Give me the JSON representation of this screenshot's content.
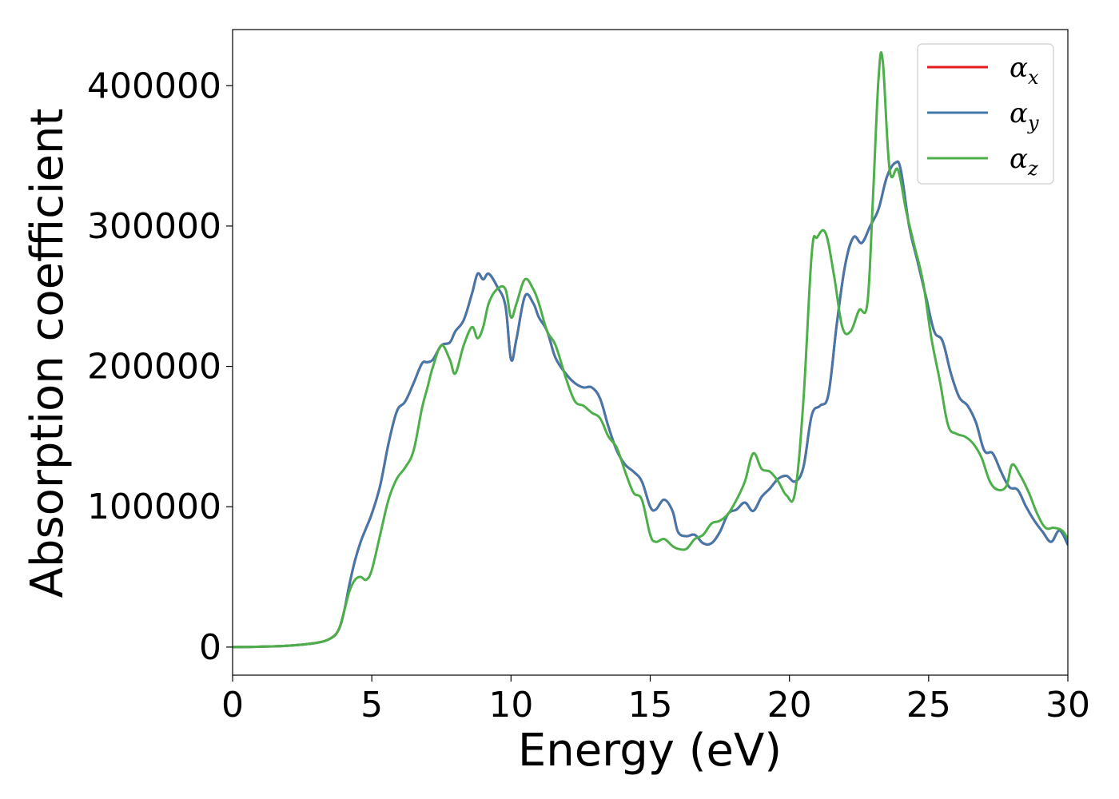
{
  "chart_data": {
    "type": "line",
    "title": "",
    "xlabel": "Energy (eV)",
    "ylabel": "Absorption coefficient",
    "xlim": [
      0,
      30
    ],
    "ylim": [
      -20000,
      440000
    ],
    "xticks": [
      0,
      5,
      10,
      15,
      20,
      25,
      30
    ],
    "xtick_labels": [
      "0",
      "5",
      "10",
      "15",
      "20",
      "25",
      "30"
    ],
    "yticks": [
      0,
      100000,
      200000,
      300000,
      400000
    ],
    "ytick_labels": [
      "0",
      "100000",
      "200000",
      "300000",
      "400000"
    ],
    "grid": false,
    "legend_position": "top-right",
    "series": [
      {
        "name": "αx",
        "legend_base": "α",
        "legend_sub": "x",
        "color": "#e41a1c",
        "x": [
          0,
          1,
          2,
          3,
          3.5,
          3.8,
          4.0,
          4.2,
          4.4,
          4.6,
          4.8,
          5.0,
          5.3,
          5.6,
          5.9,
          6.2,
          6.5,
          6.8,
          7.0,
          7.2,
          7.5,
          7.8,
          8.0,
          8.3,
          8.6,
          8.8,
          9.0,
          9.2,
          9.5,
          9.8,
          10.0,
          10.2,
          10.5,
          10.8,
          11.0,
          11.3,
          11.6,
          12.0,
          12.3,
          12.6,
          12.9,
          13.2,
          13.5,
          13.8,
          14.1,
          14.4,
          14.7,
          15.0,
          15.2,
          15.5,
          15.8,
          16.0,
          16.3,
          16.6,
          16.9,
          17.2,
          17.5,
          17.8,
          18.1,
          18.4,
          18.7,
          19.0,
          19.3,
          19.6,
          19.9,
          20.2,
          20.5,
          20.8,
          21.1,
          21.4,
          21.7,
          22.0,
          22.3,
          22.6,
          22.9,
          23.2,
          23.5,
          23.8,
          24.0,
          24.3,
          24.6,
          24.9,
          25.2,
          25.5,
          25.8,
          26.1,
          26.4,
          26.7,
          27.0,
          27.3,
          27.6,
          27.9,
          28.2,
          28.5,
          28.8,
          29.1,
          29.4,
          29.7,
          30.0
        ],
        "y": [
          0,
          300,
          1000,
          3000,
          6000,
          12000,
          25000,
          45000,
          62000,
          75000,
          85000,
          95000,
          115000,
          145000,
          168000,
          175000,
          188000,
          202000,
          203000,
          205000,
          215000,
          217000,
          225000,
          233000,
          252000,
          266000,
          262000,
          266000,
          257000,
          243000,
          205000,
          220000,
          250000,
          245000,
          235000,
          225000,
          206000,
          194000,
          188000,
          185000,
          185000,
          177000,
          157000,
          140000,
          130000,
          125000,
          118000,
          100000,
          98000,
          105000,
          97000,
          82000,
          79000,
          80000,
          74000,
          74000,
          82000,
          95000,
          98000,
          103000,
          97000,
          107000,
          113000,
          120000,
          122000,
          118000,
          128000,
          165000,
          172000,
          180000,
          230000,
          272000,
          292000,
          288000,
          300000,
          312000,
          335000,
          345000,
          340000,
          300000,
          275000,
          250000,
          225000,
          218000,
          195000,
          178000,
          172000,
          160000,
          140000,
          138000,
          125000,
          114000,
          112000,
          100000,
          90000,
          82000,
          75000,
          83000,
          73000
        ]
      },
      {
        "name": "αy",
        "legend_base": "α",
        "legend_sub": "y",
        "color": "#4477aa",
        "x": [
          0,
          1,
          2,
          3,
          3.5,
          3.8,
          4.0,
          4.2,
          4.4,
          4.6,
          4.8,
          5.0,
          5.3,
          5.6,
          5.9,
          6.2,
          6.5,
          6.8,
          7.0,
          7.2,
          7.5,
          7.8,
          8.0,
          8.3,
          8.6,
          8.8,
          9.0,
          9.2,
          9.5,
          9.8,
          10.0,
          10.2,
          10.5,
          10.8,
          11.0,
          11.3,
          11.6,
          12.0,
          12.3,
          12.6,
          12.9,
          13.2,
          13.5,
          13.8,
          14.1,
          14.4,
          14.7,
          15.0,
          15.2,
          15.5,
          15.8,
          16.0,
          16.3,
          16.6,
          16.9,
          17.2,
          17.5,
          17.8,
          18.1,
          18.4,
          18.7,
          19.0,
          19.3,
          19.6,
          19.9,
          20.2,
          20.5,
          20.8,
          21.1,
          21.4,
          21.7,
          22.0,
          22.3,
          22.6,
          22.9,
          23.2,
          23.5,
          23.8,
          24.0,
          24.3,
          24.6,
          24.9,
          25.2,
          25.5,
          25.8,
          26.1,
          26.4,
          26.7,
          27.0,
          27.3,
          27.6,
          27.9,
          28.2,
          28.5,
          28.8,
          29.1,
          29.4,
          29.7,
          30.0
        ],
        "y": [
          0,
          300,
          1000,
          3000,
          6000,
          12000,
          25000,
          45000,
          62000,
          75000,
          85000,
          95000,
          115000,
          145000,
          168000,
          175000,
          188000,
          202000,
          203000,
          205000,
          215000,
          217000,
          225000,
          233000,
          252000,
          266000,
          262000,
          266000,
          257000,
          243000,
          205000,
          220000,
          250000,
          245000,
          235000,
          225000,
          206000,
          194000,
          188000,
          185000,
          185000,
          177000,
          157000,
          140000,
          130000,
          125000,
          118000,
          100000,
          98000,
          105000,
          97000,
          82000,
          79000,
          80000,
          74000,
          74000,
          82000,
          95000,
          98000,
          103000,
          97000,
          107000,
          113000,
          120000,
          122000,
          118000,
          128000,
          165000,
          172000,
          180000,
          230000,
          272000,
          292000,
          288000,
          300000,
          312000,
          335000,
          345000,
          340000,
          300000,
          275000,
          250000,
          225000,
          218000,
          195000,
          178000,
          172000,
          160000,
          140000,
          138000,
          125000,
          114000,
          112000,
          100000,
          90000,
          82000,
          75000,
          83000,
          73000
        ]
      },
      {
        "name": "αz",
        "legend_base": "α",
        "legend_sub": "z",
        "color": "#4daf4a",
        "x": [
          0,
          1,
          2,
          3,
          3.5,
          3.8,
          4.0,
          4.2,
          4.4,
          4.6,
          4.8,
          5.0,
          5.3,
          5.6,
          5.9,
          6.2,
          6.5,
          6.8,
          7.0,
          7.2,
          7.5,
          7.8,
          8.0,
          8.3,
          8.6,
          8.8,
          9.0,
          9.2,
          9.5,
          9.8,
          10.0,
          10.2,
          10.5,
          10.8,
          11.0,
          11.3,
          11.6,
          12.0,
          12.3,
          12.6,
          12.9,
          13.2,
          13.5,
          13.8,
          14.1,
          14.4,
          14.7,
          15.0,
          15.2,
          15.5,
          15.8,
          16.0,
          16.3,
          16.6,
          16.9,
          17.2,
          17.5,
          17.8,
          18.1,
          18.4,
          18.7,
          19.0,
          19.3,
          19.6,
          19.9,
          20.2,
          20.5,
          20.8,
          21.0,
          21.3,
          21.6,
          21.9,
          22.2,
          22.5,
          22.8,
          23.0,
          23.2,
          23.35,
          23.6,
          23.9,
          24.2,
          24.5,
          24.8,
          25.1,
          25.4,
          25.7,
          26.0,
          26.3,
          26.6,
          26.9,
          27.2,
          27.5,
          27.8,
          28.0,
          28.3,
          28.6,
          28.9,
          29.2,
          29.5,
          29.8,
          30.0
        ],
        "y": [
          0,
          300,
          1000,
          3000,
          6000,
          12000,
          25000,
          40000,
          48000,
          50000,
          48000,
          55000,
          80000,
          105000,
          120000,
          128000,
          140000,
          170000,
          185000,
          200000,
          215000,
          205000,
          195000,
          215000,
          228000,
          220000,
          228000,
          245000,
          255000,
          255000,
          235000,
          245000,
          262000,
          255000,
          245000,
          225000,
          215000,
          190000,
          175000,
          172000,
          167000,
          163000,
          150000,
          142000,
          125000,
          110000,
          105000,
          80000,
          75000,
          77000,
          72000,
          70000,
          70000,
          77000,
          80000,
          88000,
          90000,
          95000,
          105000,
          118000,
          138000,
          127000,
          125000,
          118000,
          108000,
          110000,
          175000,
          280000,
          292000,
          295000,
          265000,
          228000,
          225000,
          240000,
          245000,
          320000,
          405000,
          418000,
          340000,
          340000,
          310000,
          285000,
          260000,
          220000,
          190000,
          158000,
          152000,
          150000,
          145000,
          135000,
          118000,
          112000,
          115000,
          130000,
          122000,
          110000,
          95000,
          85000,
          85000,
          83000,
          77000
        ]
      }
    ]
  }
}
